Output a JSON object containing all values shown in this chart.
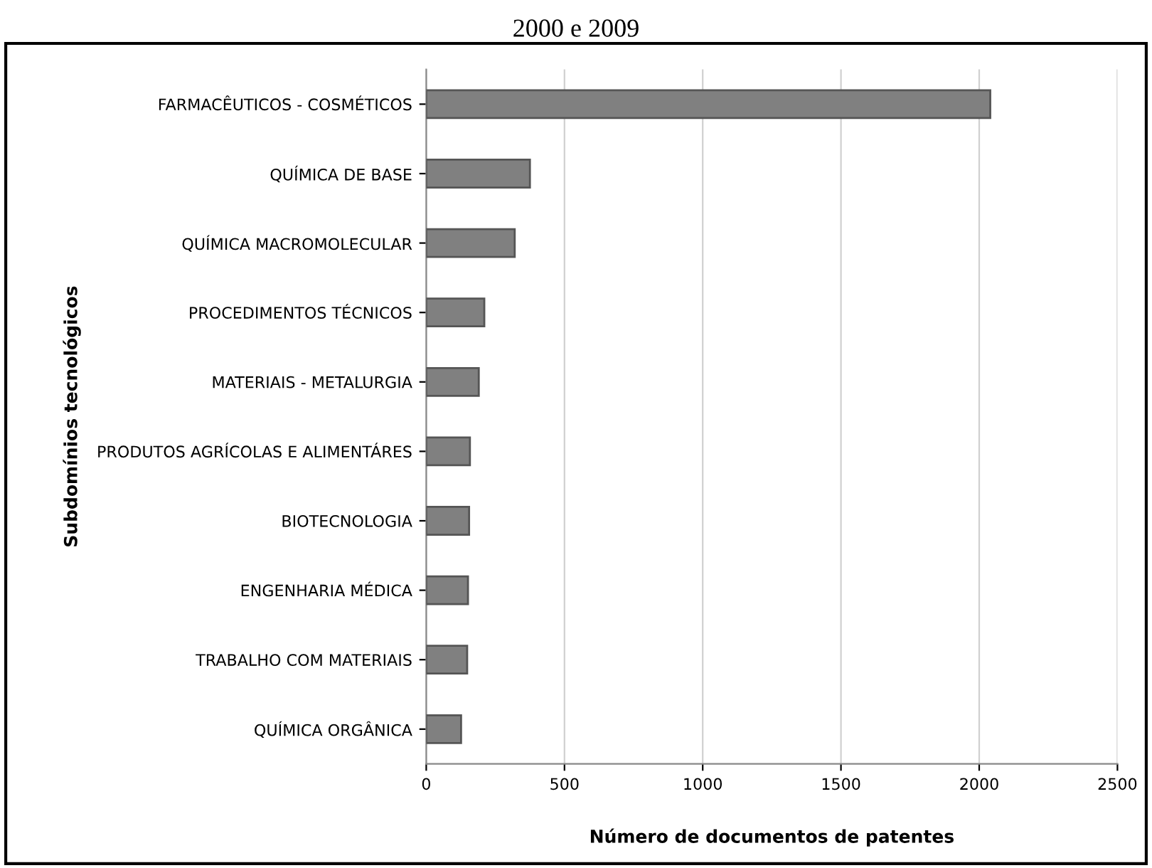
{
  "chart_data": {
    "type": "bar",
    "orientation": "horizontal",
    "title": "2000 e 2009",
    "xlabel": "Número de documentos de patentes",
    "ylabel": "Subdomínios tecnológicos",
    "categories": [
      "FARMACÊUTICOS - COSMÉTICOS",
      "QUÍMICA DE BASE",
      "QUÍMICA MACROMOLECULAR",
      "PROCEDIMENTOS TÉCNICOS",
      "MATERIAIS - METALURGIA",
      "PRODUTOS AGRÍCOLAS E ALIMENTÁRES",
      "BIOTECNOLOGIA",
      "ENGENHARIA MÉDICA",
      "TRABALHO COM MATERIAIS",
      "QUÍMICA ORGÂNICA"
    ],
    "values": [
      2040,
      375,
      320,
      210,
      190,
      158,
      155,
      151,
      148,
      126
    ],
    "color": "#808080",
    "xlim": [
      0,
      2500
    ],
    "xticks": [
      0,
      500,
      1000,
      1500,
      2000,
      2500
    ],
    "grid": "x"
  }
}
